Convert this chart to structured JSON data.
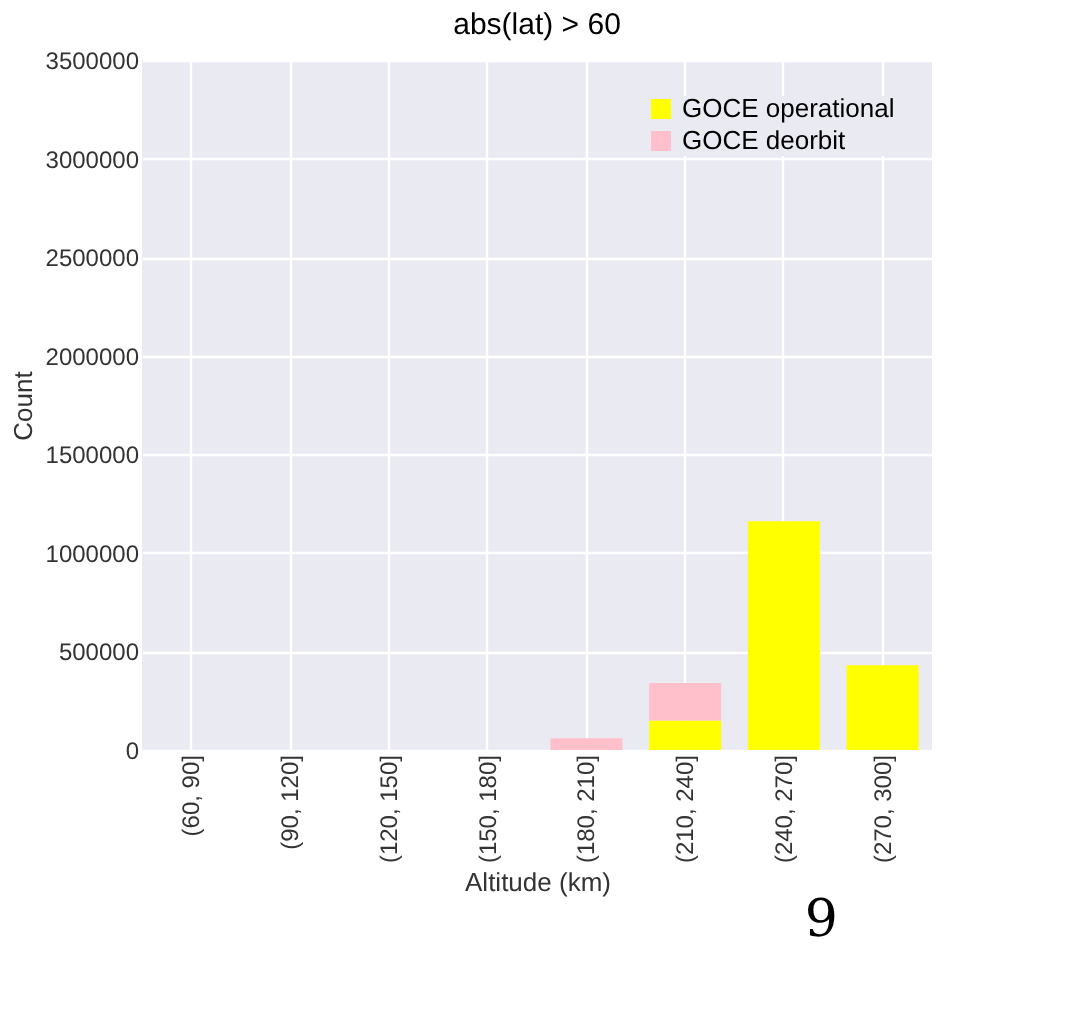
{
  "chart_data": {
    "type": "bar",
    "title": "abs(lat) > 60",
    "xlabel": "Altitude (km)",
    "ylabel": "Count",
    "categories": [
      "(60, 90]",
      "(90, 120]",
      "(120, 150]",
      "(150, 180]",
      "(180, 210]",
      "(210, 240]",
      "(240, 270]",
      "(270, 300]"
    ],
    "series": [
      {
        "name": "GOCE operational",
        "color": "#ffff00",
        "values": [
          0,
          0,
          0,
          0,
          0,
          150000,
          1160000,
          430000
        ]
      },
      {
        "name": "GOCE deorbit",
        "color": "#ffc0cb",
        "values": [
          0,
          0,
          0,
          0,
          60000,
          190000,
          0,
          0
        ]
      }
    ],
    "stacked": true,
    "ylim": [
      0,
      3500000
    ],
    "yticks": [
      0,
      500000,
      1000000,
      1500000,
      2000000,
      2500000,
      3000000,
      3500000
    ],
    "grid": true,
    "legend": "top right",
    "annotations": [
      "9"
    ]
  }
}
